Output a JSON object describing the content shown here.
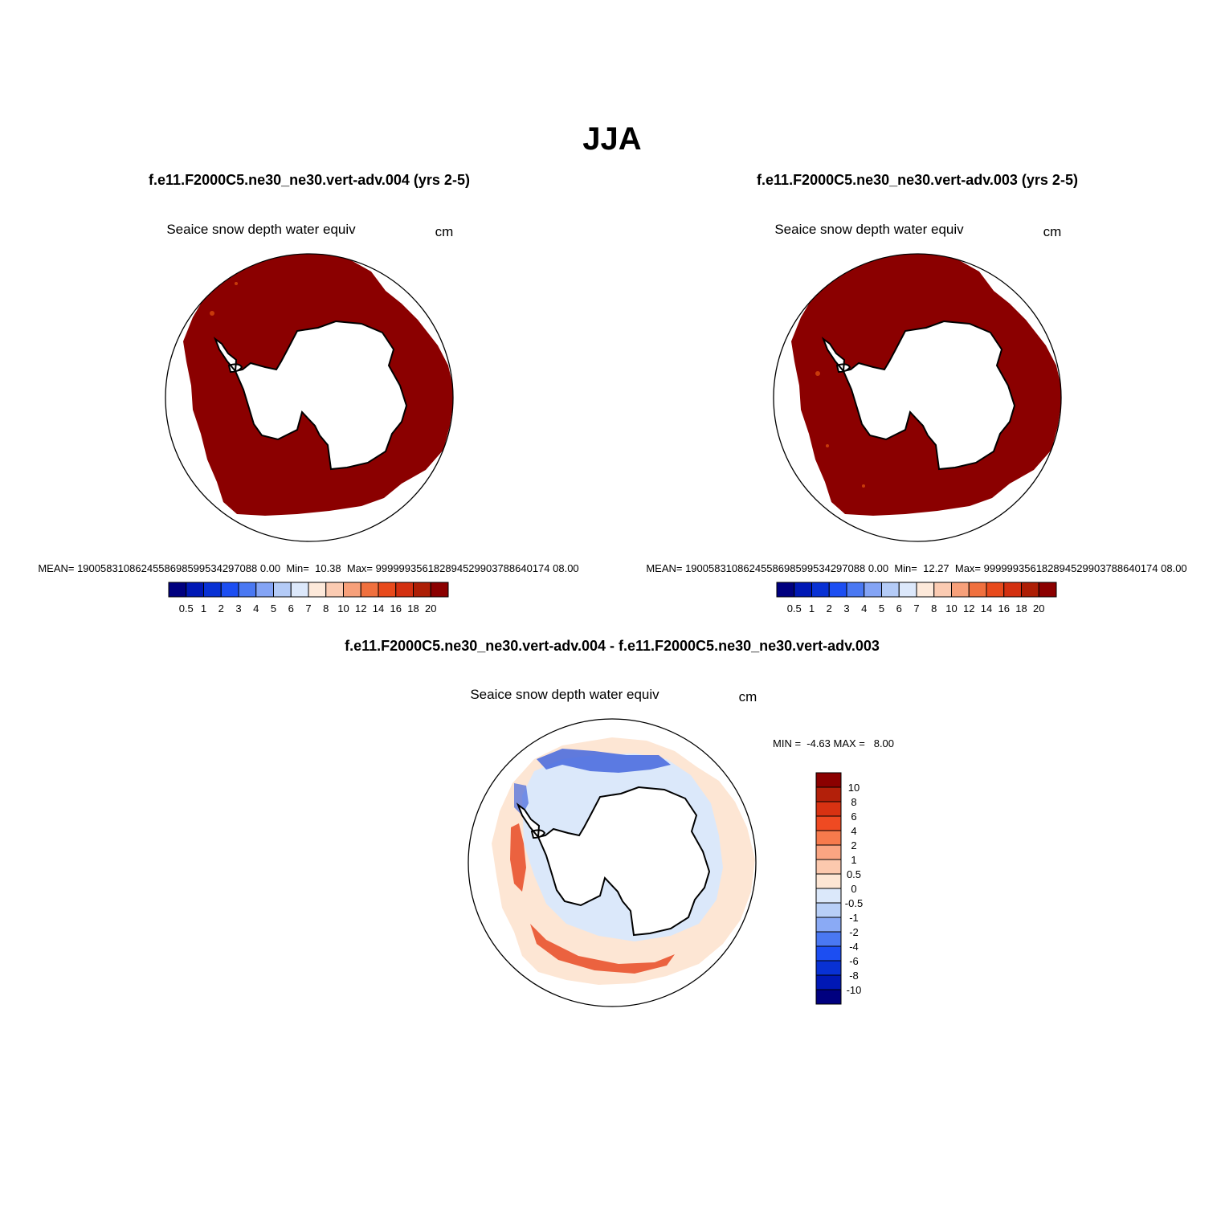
{
  "figure": {
    "season_title": "JJA"
  },
  "colors": {
    "land": "#ffffff",
    "coast": "#000000",
    "panel_fill_dark": "#8b0000",
    "panel_fill_spot": "#c83a0a",
    "diff_ring_base": "#fde6d4",
    "diff_positive": "#e84a24",
    "diff_negative": "#4466dd",
    "diff_light_negative": "#dbe8fa"
  },
  "chart_data": [
    {
      "type": "heatmap",
      "projection": "south polar stereographic",
      "title": "f.e11.F2000C5.ne30_ne30.vert-adv.004 (yrs 2-5)",
      "left_label": "Seaice snow depth water equiv",
      "right_label": "cm",
      "stats_text": "MEAN= 1900583108624558698599534297088 0.00  Min=  10.38  Max= 999999356182894529903788640174 08.00",
      "stats": {
        "mean": "1900583108624558698599534297088 0.00",
        "min": "10.38",
        "max": "999999356182894529903788640174 08.00"
      },
      "dominant_value_range": ">20",
      "colorbar": {
        "orientation": "horizontal",
        "levels": [
          "0.5",
          "1",
          "2",
          "3",
          "4",
          "5",
          "6",
          "7",
          "8",
          "10",
          "12",
          "14",
          "16",
          "18",
          "20"
        ],
        "colors": [
          "#00007f",
          "#0018b5",
          "#0831d4",
          "#1c4ef2",
          "#4a78f2",
          "#84a4f5",
          "#b4cbf7",
          "#dce8fb",
          "#fde9da",
          "#fbcbb2",
          "#f7a07a",
          "#f0703e",
          "#e84a1c",
          "#d33010",
          "#ad1e05",
          "#8b0000"
        ]
      }
    },
    {
      "type": "heatmap",
      "projection": "south polar stereographic",
      "title": "f.e11.F2000C5.ne30_ne30.vert-adv.003 (yrs 2-5)",
      "left_label": "Seaice snow depth water equiv",
      "right_label": "cm",
      "stats_text": "MEAN= 1900583108624558698599534297088 0.00  Min=  12.27  Max= 999999356182894529903788640174 08.00",
      "stats": {
        "mean": "1900583108624558698599534297088 0.00",
        "min": "12.27",
        "max": "999999356182894529903788640174 08.00"
      },
      "dominant_value_range": ">20",
      "colorbar": {
        "orientation": "horizontal",
        "levels": [
          "0.5",
          "1",
          "2",
          "3",
          "4",
          "5",
          "6",
          "7",
          "8",
          "10",
          "12",
          "14",
          "16",
          "18",
          "20"
        ],
        "colors": [
          "#00007f",
          "#0018b5",
          "#0831d4",
          "#1c4ef2",
          "#4a78f2",
          "#84a4f5",
          "#b4cbf7",
          "#dce8fb",
          "#fde9da",
          "#fbcbb2",
          "#f7a07a",
          "#f0703e",
          "#e84a1c",
          "#d33010",
          "#ad1e05",
          "#8b0000"
        ]
      }
    },
    {
      "type": "heatmap",
      "projection": "south polar stereographic",
      "title": "f.e11.F2000C5.ne30_ne30.vert-adv.004 - f.e11.F2000C5.ne30_ne30.vert-adv.003",
      "left_label": "Seaice snow depth water equiv",
      "right_label": "cm",
      "stats_text": "MIN =  -4.63 MAX =   8.00",
      "stats": {
        "min": "-4.63",
        "max": "8.00"
      },
      "colorbar": {
        "orientation": "vertical",
        "levels": [
          "10",
          "8",
          "6",
          "4",
          "2",
          "1",
          "0.5",
          "0",
          "-0.5",
          "-1",
          "-2",
          "-4",
          "-6",
          "-8",
          "-10"
        ],
        "colors": [
          "#8b0000",
          "#b3200a",
          "#d83212",
          "#ef4a22",
          "#f77a4c",
          "#faa582",
          "#fcc9ae",
          "#fde6d4",
          "#dbe8fa",
          "#b8cff7",
          "#8aaaf5",
          "#4a78f2",
          "#1c4ef2",
          "#0831d4",
          "#0018b5",
          "#00007f"
        ]
      }
    }
  ]
}
